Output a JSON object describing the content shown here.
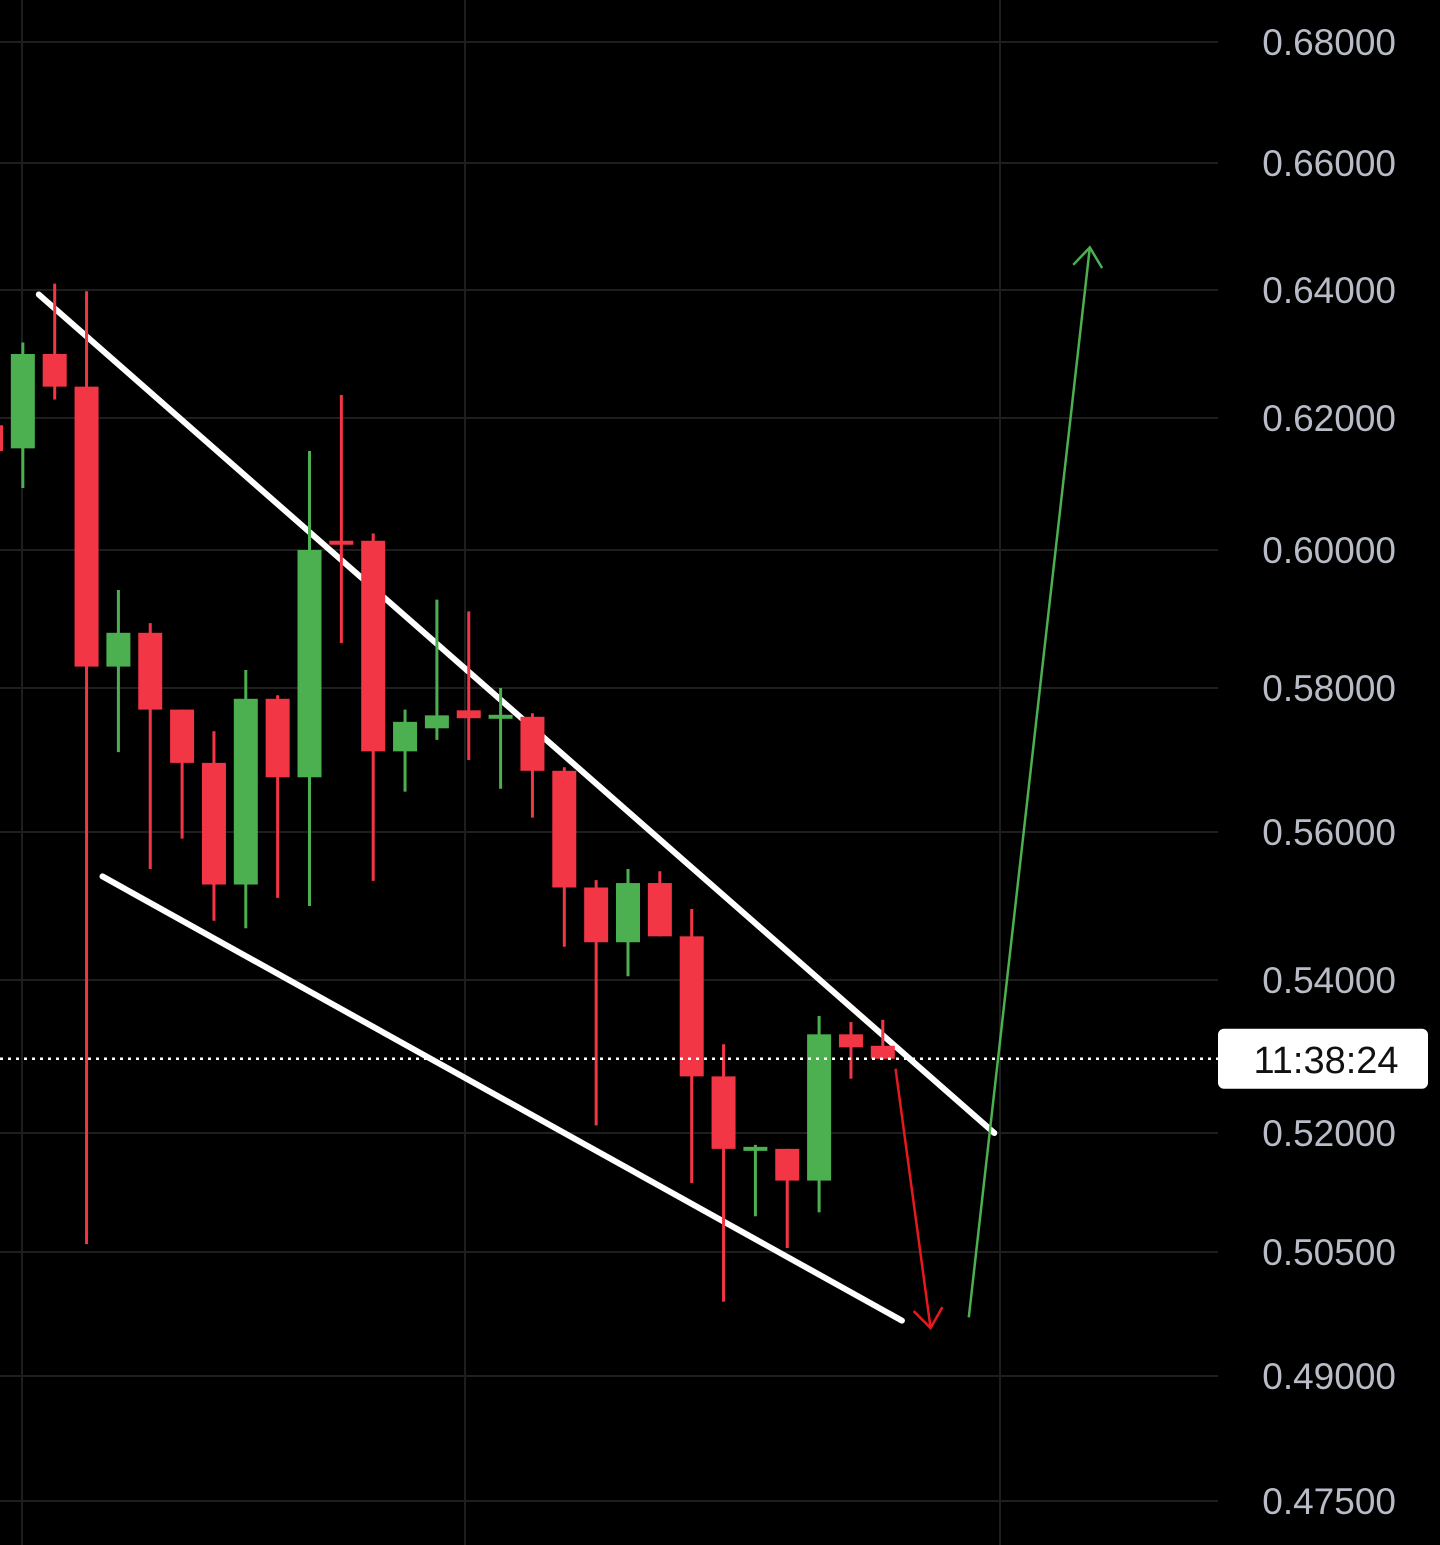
{
  "chart_data": {
    "type": "candlestick",
    "theme": {
      "background": "#000000",
      "grid": "#1e1e1e",
      "up": "#4caf50",
      "down": "#f23645",
      "trendline": "#ffffff",
      "text": "#b8bcc6",
      "arrow_up": "#4caf50",
      "arrow_down": "#e8181f"
    },
    "y_axis": {
      "ticks": [
        "0.68000",
        "0.66000",
        "0.64000",
        "0.62000",
        "0.60000",
        "0.58000",
        "0.56000",
        "0.54000",
        "0.52000",
        "0.50500",
        "0.49000",
        "0.47500"
      ],
      "tick_values": [
        0.68,
        0.66,
        0.64,
        0.62,
        0.6,
        0.58,
        0.56,
        0.54,
        0.52,
        0.505,
        0.49,
        0.475
      ],
      "range": [
        0.4735,
        0.6855
      ]
    },
    "grid": true,
    "countdown_label": "11:38:24",
    "current_price": 0.5297,
    "candles": [
      {
        "o": 0.6189,
        "h": 0.6215,
        "l": 0.615,
        "c": 0.615
      },
      {
        "o": 0.6154,
        "h": 0.6318,
        "l": 0.6094,
        "c": 0.63
      },
      {
        "o": 0.63,
        "h": 0.641,
        "l": 0.6229,
        "c": 0.6249
      },
      {
        "o": 0.6249,
        "h": 0.6398,
        "l": 0.506,
        "c": 0.5831
      },
      {
        "o": 0.5831,
        "h": 0.5942,
        "l": 0.5711,
        "c": 0.588
      },
      {
        "o": 0.588,
        "h": 0.5894,
        "l": 0.555,
        "c": 0.577
      },
      {
        "o": 0.577,
        "h": 0.577,
        "l": 0.5591,
        "c": 0.5696
      },
      {
        "o": 0.5696,
        "h": 0.574,
        "l": 0.548,
        "c": 0.5529
      },
      {
        "o": 0.5529,
        "h": 0.5826,
        "l": 0.547,
        "c": 0.5785
      },
      {
        "o": 0.5785,
        "h": 0.579,
        "l": 0.5511,
        "c": 0.5676
      },
      {
        "o": 0.5676,
        "h": 0.615,
        "l": 0.55,
        "c": 0.6
      },
      {
        "o": 0.6011,
        "h": 0.6236,
        "l": 0.5865,
        "c": 0.6006
      },
      {
        "o": 0.6014,
        "h": 0.6025,
        "l": 0.5534,
        "c": 0.5712
      },
      {
        "o": 0.5712,
        "h": 0.577,
        "l": 0.5656,
        "c": 0.5753
      },
      {
        "o": 0.5744,
        "h": 0.5928,
        "l": 0.5728,
        "c": 0.5762
      },
      {
        "o": 0.5769,
        "h": 0.5911,
        "l": 0.57,
        "c": 0.5758
      },
      {
        "o": 0.576,
        "h": 0.58,
        "l": 0.566,
        "c": 0.576
      },
      {
        "o": 0.576,
        "h": 0.5765,
        "l": 0.562,
        "c": 0.5685
      },
      {
        "o": 0.5685,
        "h": 0.569,
        "l": 0.5445,
        "c": 0.5525
      },
      {
        "o": 0.5525,
        "h": 0.5535,
        "l": 0.521,
        "c": 0.5451
      },
      {
        "o": 0.5451,
        "h": 0.555,
        "l": 0.5405,
        "c": 0.5531
      },
      {
        "o": 0.5531,
        "h": 0.5547,
        "l": 0.5459,
        "c": 0.5459
      },
      {
        "o": 0.5459,
        "h": 0.5496,
        "l": 0.5137,
        "c": 0.5274
      },
      {
        "o": 0.5274,
        "h": 0.5316,
        "l": 0.499,
        "c": 0.518
      },
      {
        "o": 0.518,
        "h": 0.5185,
        "l": 0.5095,
        "c": 0.518
      },
      {
        "o": 0.518,
        "h": 0.518,
        "l": 0.5055,
        "c": 0.514
      },
      {
        "o": 0.514,
        "h": 0.5353,
        "l": 0.51,
        "c": 0.5329
      },
      {
        "o": 0.5329,
        "h": 0.5345,
        "l": 0.5271,
        "c": 0.5312
      },
      {
        "o": 0.5314,
        "h": 0.5348,
        "l": 0.5296,
        "c": 0.5297
      }
    ],
    "trendlines": [
      {
        "name": "upper",
        "from": {
          "candle": 1.5,
          "price": 0.6393
        },
        "to": {
          "candle": 31.5,
          "price": 0.52
        }
      },
      {
        "name": "lower",
        "from": {
          "candle": 3.5,
          "price": 0.554
        },
        "to": {
          "candle": 28.6,
          "price": 0.4967
        }
      }
    ],
    "arrows": [
      {
        "name": "down",
        "from": {
          "candle": 28.4,
          "price": 0.5284
        },
        "to": {
          "candle": 29.5,
          "price": 0.4958
        }
      },
      {
        "name": "up",
        "from": {
          "candle": 30.7,
          "price": 0.4971
        },
        "to": {
          "candle": 34.5,
          "price": 0.6467
        }
      }
    ]
  }
}
